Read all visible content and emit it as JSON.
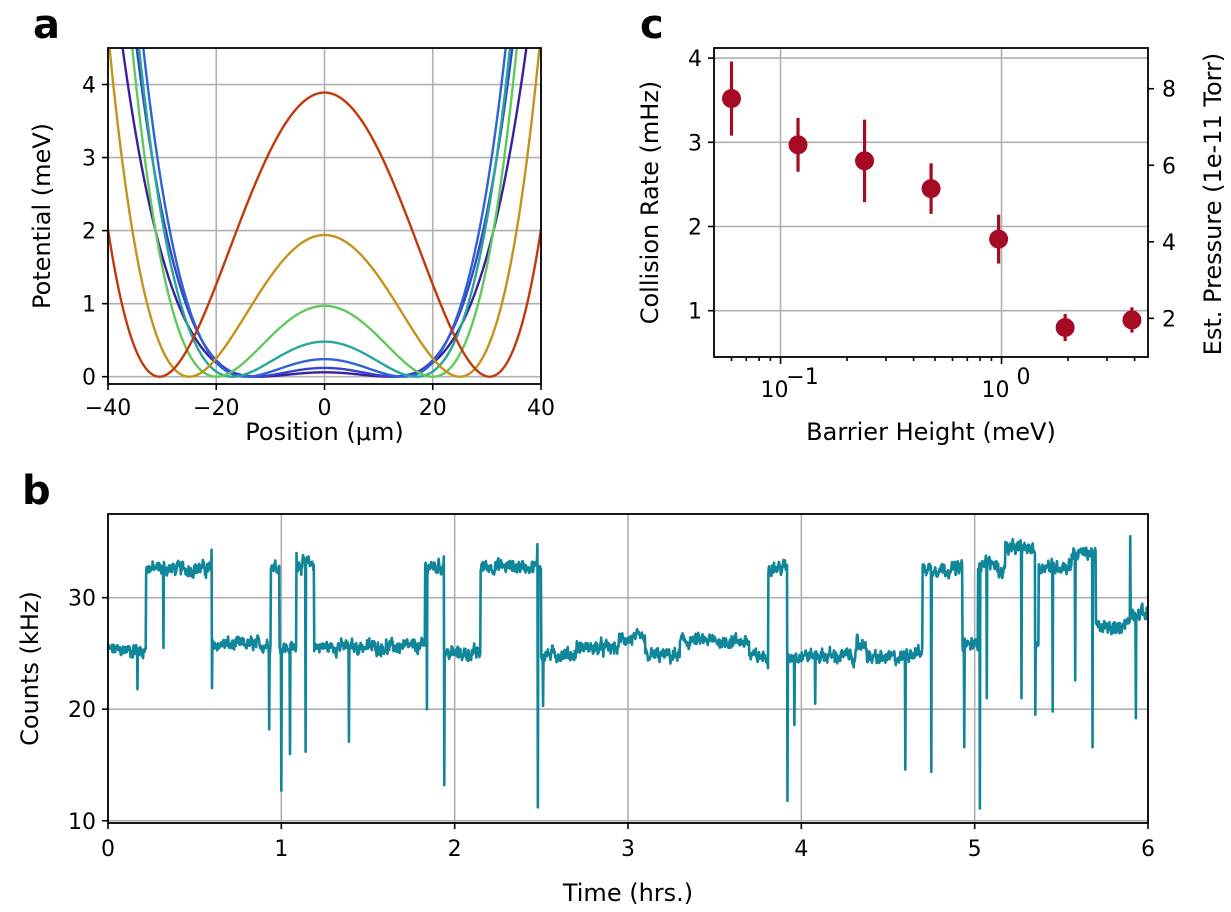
{
  "panels": {
    "a": {
      "letter": "a"
    },
    "b": {
      "letter": "b"
    },
    "c": {
      "letter": "c"
    }
  },
  "chart_data": [
    {
      "id": "a",
      "type": "line",
      "xlabel": "Position (μm)",
      "ylabel": "Potential (meV)",
      "xlim": [
        -40,
        40
      ],
      "ylim": [
        -0.1,
        4.5
      ],
      "xticks": [
        -40,
        -20,
        0,
        20,
        40
      ],
      "xtick_labels": [
        "−40",
        "−20",
        "0",
        "20",
        "40"
      ],
      "yticks": [
        0,
        1,
        2,
        3,
        4
      ],
      "ytick_labels": [
        "0",
        "1",
        "2",
        "3",
        "4"
      ],
      "grid": true,
      "series": [
        {
          "barrier": 0.06,
          "min_x": 12.0,
          "color": "#3b1f9e"
        },
        {
          "barrier": 0.12,
          "min_x": 13.0,
          "color": "#3646c9"
        },
        {
          "barrier": 0.24,
          "min_x": 14.5,
          "color": "#2f63d4"
        },
        {
          "barrier": 0.48,
          "min_x": 17.0,
          "color": "#28a79b"
        },
        {
          "barrier": 0.97,
          "min_x": 20.0,
          "color": "#5fc95b"
        },
        {
          "barrier": 1.94,
          "min_x": 25.0,
          "color": "#c4931b"
        },
        {
          "barrier": 3.89,
          "min_x": 30.5,
          "color": "#c23a0a"
        }
      ]
    },
    {
      "id": "c",
      "type": "scatter",
      "xlabel": "Barrier Height (meV)",
      "ylabel": "Collision Rate (mHz)",
      "ylabel_right": "Est. Pressure (1e-11 Torr)",
      "xscale": "log",
      "xlim": [
        0.05,
        4.6
      ],
      "ylim": [
        0.45,
        4.12
      ],
      "xticks": [
        0.1,
        1
      ],
      "xtick_labels": [
        "10",
        "10"
      ],
      "xtick_exponents": [
        "−1",
        "0"
      ],
      "yticks": [
        1,
        2,
        3,
        4
      ],
      "ytick_labels": [
        "1",
        "2",
        "3",
        "4"
      ],
      "right_ticks": [
        2,
        4,
        6,
        8
      ],
      "right_tick_labels": [
        "2",
        "4",
        "6",
        "8"
      ],
      "right_per_left": 2.2,
      "grid": true,
      "marker_color": "#a50b24",
      "points": [
        {
          "x": 0.06,
          "y": 3.52,
          "err": 0.44
        },
        {
          "x": 0.12,
          "y": 2.97,
          "err": 0.32
        },
        {
          "x": 0.24,
          "y": 2.78,
          "err": 0.49
        },
        {
          "x": 0.48,
          "y": 2.45,
          "err": 0.3
        },
        {
          "x": 0.97,
          "y": 1.85,
          "err": 0.29
        },
        {
          "x": 1.94,
          "y": 0.8,
          "err": 0.16
        },
        {
          "x": 3.89,
          "y": 0.89,
          "err": 0.15
        }
      ]
    },
    {
      "id": "b",
      "type": "line",
      "xlabel": "Time (hrs.)",
      "ylabel": "Counts (kHz)",
      "xlim": [
        0,
        6
      ],
      "ylim": [
        9.8,
        37.5
      ],
      "xticks": [
        0,
        1,
        2,
        3,
        4,
        5,
        6
      ],
      "xtick_labels": [
        "0",
        "1",
        "2",
        "3",
        "4",
        "5",
        "6"
      ],
      "yticks": [
        10,
        20,
        30
      ],
      "ytick_labels": [
        "10",
        "20",
        "30"
      ],
      "grid": true,
      "color": "#10869a",
      "noise_khz": 0.6,
      "levels": [
        [
          0.0,
          25.3
        ],
        [
          0.22,
          32.6
        ],
        [
          0.6,
          25.8
        ],
        [
          0.94,
          32.8
        ],
        [
          0.99,
          25.5
        ],
        [
          1.09,
          33.0
        ],
        [
          1.19,
          25.6
        ],
        [
          1.83,
          32.8
        ],
        [
          1.94,
          25.0
        ],
        [
          2.15,
          32.8
        ],
        [
          2.5,
          24.9
        ],
        [
          2.7,
          25.5
        ],
        [
          2.95,
          26.3
        ],
        [
          3.1,
          24.8
        ],
        [
          3.3,
          26.1
        ],
        [
          3.7,
          24.7
        ],
        [
          3.81,
          32.7
        ],
        [
          3.92,
          24.8
        ],
        [
          4.3,
          24.6
        ],
        [
          4.32,
          25.8
        ],
        [
          4.38,
          24.6
        ],
        [
          4.6,
          25.1
        ],
        [
          4.7,
          32.6
        ],
        [
          4.93,
          25.8
        ],
        [
          5.02,
          33.1
        ],
        [
          5.13,
          32.4
        ],
        [
          5.18,
          34.4
        ],
        [
          5.35,
          25.8
        ],
        [
          5.37,
          32.8
        ],
        [
          5.56,
          34.0
        ],
        [
          5.7,
          27.3
        ],
        [
          5.85,
          27.8
        ],
        [
          5.9,
          28.6
        ],
        [
          6.0,
          28.6
        ]
      ],
      "dips": [
        [
          0.17,
          21.8
        ],
        [
          0.32,
          25.5
        ],
        [
          0.6,
          21.9
        ],
        [
          0.93,
          18.2
        ],
        [
          1.0,
          12.7
        ],
        [
          1.05,
          16.0
        ],
        [
          1.14,
          16.2
        ],
        [
          1.39,
          17.1
        ],
        [
          1.84,
          20.0
        ],
        [
          1.94,
          13.2
        ],
        [
          2.48,
          11.2
        ],
        [
          2.51,
          20.3
        ],
        [
          3.92,
          11.8
        ],
        [
          3.96,
          18.6
        ],
        [
          4.08,
          20.5
        ],
        [
          4.6,
          14.6
        ],
        [
          4.75,
          14.4
        ],
        [
          4.94,
          16.6
        ],
        [
          5.03,
          11.1
        ],
        [
          5.07,
          21.0
        ],
        [
          5.27,
          21.0
        ],
        [
          5.35,
          19.5
        ],
        [
          5.45,
          19.8
        ],
        [
          5.58,
          22.6
        ],
        [
          5.68,
          16.6
        ],
        [
          5.93,
          19.2
        ]
      ],
      "spikes": [
        [
          0.6,
          34.3
        ],
        [
          1.09,
          34.0
        ],
        [
          1.94,
          33.7
        ],
        [
          2.48,
          34.8
        ],
        [
          5.9,
          35.5
        ],
        [
          5.18,
          35.0
        ]
      ]
    }
  ]
}
